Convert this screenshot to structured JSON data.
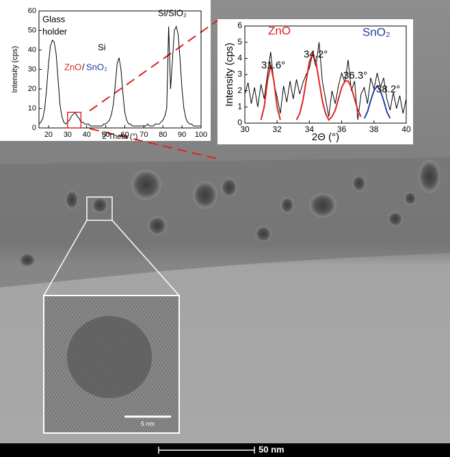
{
  "image": {
    "scale_bar_label": "50 nm",
    "inset_scale_bar_label": "5 nm"
  },
  "chart_data": [
    {
      "type": "line",
      "xlabel": "2 Theta (°)",
      "ylabel": "Intensity (cps)",
      "xlim": [
        15,
        100
      ],
      "ylim": [
        0,
        60
      ],
      "xticks": [
        20,
        30,
        40,
        50,
        60,
        70,
        80,
        90,
        100
      ],
      "yticks": [
        0,
        10,
        20,
        30,
        40,
        50,
        60
      ],
      "x": [
        15,
        16,
        17,
        18,
        19,
        20,
        21,
        22,
        23,
        24,
        25,
        26,
        27,
        28,
        29,
        30,
        31,
        32,
        33,
        34,
        35,
        36,
        37,
        38,
        39,
        40,
        41,
        42,
        43,
        44,
        45,
        46,
        47,
        48,
        49,
        50,
        51,
        52,
        53,
        54,
        55,
        56,
        57,
        58,
        59,
        60,
        61,
        62,
        63,
        64,
        65,
        66,
        67,
        68,
        69,
        70,
        71,
        72,
        73,
        74,
        75,
        76,
        77,
        78,
        79,
        80,
        81,
        82,
        83,
        84,
        85,
        86,
        87,
        88,
        89,
        90,
        91,
        92,
        93,
        94,
        95,
        96,
        97,
        98,
        99,
        100
      ],
      "series": [
        {
          "color": "#000000",
          "values": [
            2,
            3,
            5,
            10,
            20,
            33,
            42,
            45,
            44,
            38,
            25,
            12,
            6,
            3,
            2,
            3,
            4,
            6,
            7,
            8,
            6,
            5,
            3,
            3,
            2,
            2,
            2,
            1,
            1,
            1,
            1,
            1,
            1,
            1,
            2,
            2,
            3,
            4,
            7,
            12,
            22,
            33,
            36,
            30,
            18,
            8,
            4,
            2,
            2,
            1,
            1,
            1,
            1,
            1,
            1,
            1,
            1,
            2,
            1,
            1,
            1,
            2,
            2,
            2,
            3,
            4,
            6,
            10,
            52,
            20,
            35,
            50,
            52,
            48,
            35,
            20,
            10,
            5,
            3,
            2,
            2,
            1,
            1,
            1,
            1,
            1
          ]
        }
      ],
      "annotations": [
        {
          "text": "Glass",
          "color": "#000000"
        },
        {
          "text": "holder",
          "color": "#000000"
        },
        {
          "text": "Si",
          "color": "#000000"
        },
        {
          "text": "Si/SiO₂",
          "color": "#000000"
        },
        {
          "text": "ZnO",
          "color": "#e02020"
        },
        {
          "text": "/",
          "color": "#000000"
        },
        {
          "text": "SnO₂",
          "color": "#2040a0"
        }
      ],
      "highlight": {
        "x": [
          30,
          37
        ],
        "y": [
          0,
          8
        ],
        "color": "#e02020"
      }
    },
    {
      "type": "line",
      "xlabel": "2Θ (°)",
      "ylabel": "Intensity (cps)",
      "xlim": [
        30,
        40
      ],
      "ylim": [
        0,
        6
      ],
      "xticks": [
        30,
        32,
        34,
        36,
        38,
        40
      ],
      "yticks": [
        0,
        1,
        2,
        3,
        4,
        5,
        6
      ],
      "x": [
        30,
        30.2,
        30.4,
        30.6,
        30.8,
        31,
        31.2,
        31.4,
        31.6,
        31.8,
        32,
        32.2,
        32.4,
        32.6,
        32.8,
        33,
        33.2,
        33.4,
        33.6,
        33.8,
        34,
        34.2,
        34.4,
        34.6,
        34.8,
        35,
        35.2,
        35.4,
        35.6,
        35.8,
        36,
        36.2,
        36.4,
        36.6,
        36.8,
        37,
        37.2,
        37.4,
        37.6,
        37.8,
        38,
        38.2,
        38.4,
        38.6,
        38.8,
        39,
        39.2,
        39.4,
        39.6,
        39.8,
        40
      ],
      "series": [
        {
          "color": "#000000",
          "values": [
            1.8,
            2.5,
            1.2,
            2.2,
            1.0,
            2.4,
            1.5,
            3.0,
            4.4,
            2.5,
            1.6,
            0.6,
            2.3,
            1.3,
            2.6,
            1.5,
            2.7,
            1.8,
            2.5,
            3.0,
            3.4,
            4.3,
            3.5,
            5.0,
            2.6,
            1.5,
            0.4,
            2.0,
            1.2,
            2.3,
            3.1,
            2.5,
            3.9,
            2.0,
            2.6,
            0.2,
            1.8,
            2.2,
            1.2,
            2.8,
            2.1,
            3.1,
            2.2,
            2.8,
            1.5,
            0.8,
            1.9,
            0.9,
            1.7,
            0.6,
            1.5
          ]
        },
        {
          "name": "ZnO",
          "color": "#e02020",
          "values": [
            null,
            null,
            null,
            null,
            null,
            0.2,
            1.0,
            2.6,
            3.6,
            2.6,
            1.0,
            0.2,
            null,
            null,
            null,
            null,
            0.2,
            0.6,
            1.4,
            2.6,
            3.8,
            4.3,
            3.8,
            2.6,
            1.4,
            0.6,
            0.2,
            0.4,
            0.8,
            1.5,
            2.2,
            2.6,
            2.6,
            2.2,
            1.5,
            0.8,
            0.4,
            null,
            null,
            null,
            null,
            null,
            null,
            null,
            null,
            null,
            null,
            null,
            null,
            null,
            null
          ]
        },
        {
          "name": "SnO₂",
          "color": "#2040a0",
          "values": [
            null,
            null,
            null,
            null,
            null,
            null,
            null,
            null,
            null,
            null,
            null,
            null,
            null,
            null,
            null,
            null,
            null,
            null,
            null,
            null,
            null,
            null,
            null,
            null,
            null,
            null,
            null,
            null,
            null,
            null,
            null,
            null,
            null,
            null,
            null,
            null,
            null,
            0.3,
            0.7,
            1.4,
            2.0,
            2.3,
            2.0,
            1.4,
            0.7,
            0.3,
            null,
            null,
            null,
            null,
            null
          ]
        }
      ],
      "annotations": [
        {
          "text": "31.6°",
          "color": "#000000"
        },
        {
          "text": "34.2°",
          "color": "#000000"
        },
        {
          "text": "36.3°",
          "color": "#000000"
        },
        {
          "text": "38.2°",
          "color": "#000000"
        }
      ]
    }
  ]
}
